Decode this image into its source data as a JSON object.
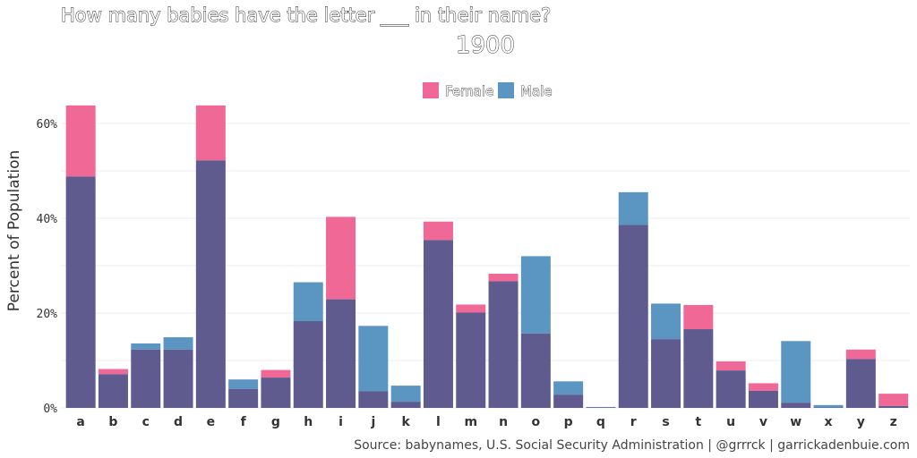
{
  "chart_data": {
    "type": "bar",
    "title": "How many babies have the letter ___ in their name?",
    "subtitle": "1900",
    "ylabel": "Percent of Population",
    "xlabel": "",
    "caption": "Source: babynames, U.S. Social Security Administration | @grrrck | garrickadenbuie.com",
    "ylim": [
      0,
      65
    ],
    "yticks": [
      0,
      20,
      40,
      60
    ],
    "ytick_labels": [
      "0%",
      "20%",
      "40%",
      "60%"
    ],
    "grid": true,
    "legend": {
      "placement": "top-center"
    },
    "colors": {
      "Female": "#f06896",
      "Male": "#5b95c2",
      "overlap": "#5f5b8f"
    },
    "categories": [
      "a",
      "b",
      "c",
      "d",
      "e",
      "f",
      "g",
      "h",
      "i",
      "j",
      "k",
      "l",
      "m",
      "n",
      "o",
      "p",
      "q",
      "r",
      "s",
      "t",
      "u",
      "v",
      "w",
      "x",
      "y",
      "z"
    ],
    "series": [
      {
        "name": "Female",
        "values": [
          63.8,
          8.2,
          12.3,
          12.3,
          63.8,
          4.0,
          8.0,
          18.3,
          40.3,
          3.5,
          1.3,
          39.3,
          21.8,
          28.3,
          15.7,
          2.8,
          0.1,
          38.6,
          14.5,
          21.7,
          9.8,
          5.2,
          1.1,
          0.1,
          12.3,
          3.0
        ]
      },
      {
        "name": "Male",
        "values": [
          48.8,
          7.1,
          13.6,
          14.9,
          52.2,
          6.0,
          6.4,
          26.5,
          22.9,
          17.3,
          4.7,
          35.4,
          20.1,
          26.7,
          32.0,
          5.6,
          0.2,
          45.5,
          22.0,
          16.6,
          7.9,
          3.6,
          14.1,
          0.6,
          10.3,
          0.4
        ]
      }
    ]
  }
}
